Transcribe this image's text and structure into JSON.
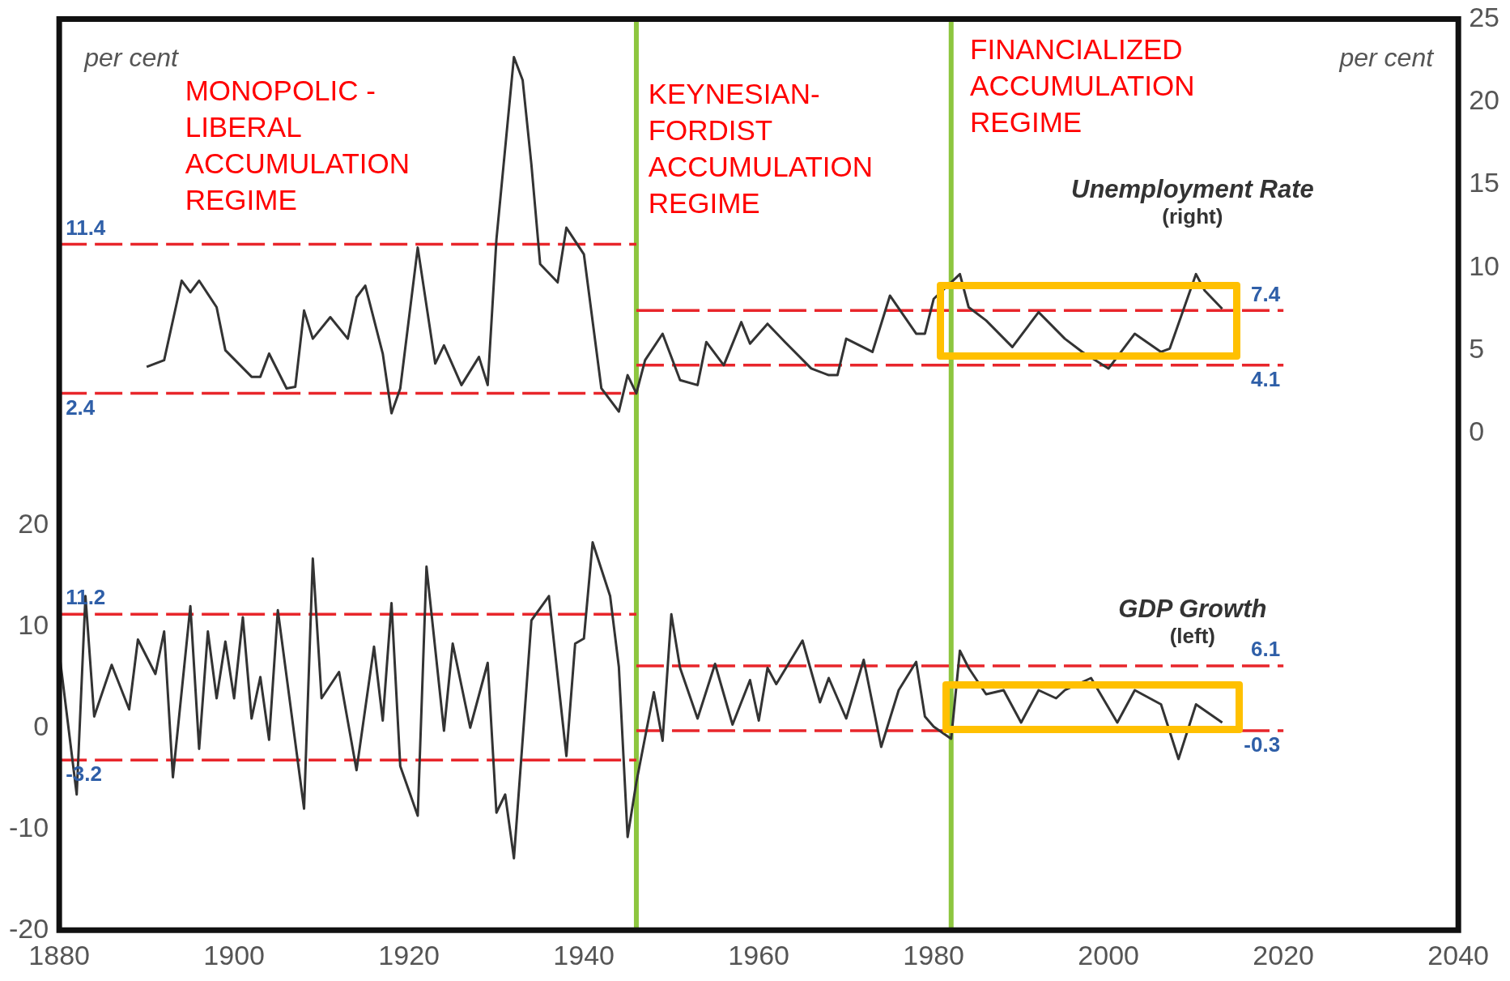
{
  "chart_data": {
    "type": "line",
    "xlim": [
      1880,
      2040
    ],
    "xticks": [
      1880,
      1900,
      1920,
      1940,
      1960,
      1980,
      2000,
      2020,
      2040
    ],
    "ylim": [
      -20,
      70
    ],
    "yticks": [
      -20,
      -10,
      0,
      10,
      20
    ],
    "y2lim": [
      -30,
      25
    ],
    "y2ticks": [
      0,
      5,
      10,
      15,
      20,
      25
    ],
    "grid": false,
    "marker": "none",
    "annotations": [
      "per cent",
      "per cent",
      "MONOPOLIC - LIBERAL ACCUMULATION REGIME",
      "KEYNESIAN-FORDIST ACCUMULATION REGIME",
      "FINANCIALIZED ACCUMULATION REGIME"
    ],
    "ref_lines": [
      {
        "axis": "x",
        "value": 1946,
        "color": "#8dc63f"
      },
      {
        "axis": "x",
        "value": 1982,
        "color": "#8dc63f"
      }
    ],
    "series": [
      {
        "name": "Unemployment Rate (right)",
        "color": "#333333",
        "axis": "y2",
        "x": [
          1890,
          1892,
          1894,
          1895,
          1896,
          1898,
          1899,
          1902,
          1903,
          1904,
          1906,
          1907,
          1908,
          1909,
          1911,
          1913,
          1914,
          1915,
          1917,
          1918,
          1919,
          1921,
          1923,
          1924,
          1926,
          1928,
          1929,
          1930,
          1932,
          1933,
          1934,
          1935,
          1937,
          1938,
          1940,
          1942,
          1944,
          1945,
          1946,
          1947,
          1949,
          1951,
          1953,
          1954,
          1956,
          1958,
          1959,
          1961,
          1963,
          1966,
          1968,
          1969,
          1970,
          1973,
          1975,
          1978,
          1979,
          1980,
          1983,
          1984,
          1986,
          1989,
          1992,
          1995,
          1997,
          2000,
          2003,
          2006,
          2007,
          2010,
          2011,
          2013
        ],
        "values": [
          4.0,
          4.4,
          9.2,
          8.5,
          9.2,
          7.6,
          5.0,
          3.4,
          3.4,
          4.8,
          2.7,
          2.8,
          7.4,
          5.7,
          7.0,
          5.7,
          8.2,
          8.9,
          4.8,
          1.2,
          2.7,
          11.2,
          4.2,
          5.3,
          2.9,
          4.6,
          2.9,
          11.7,
          22.7,
          21.3,
          16.2,
          10.2,
          9.1,
          12.4,
          10.8,
          2.7,
          1.3,
          3.5,
          2.4,
          4.4,
          6.0,
          3.2,
          2.9,
          5.5,
          4.1,
          6.7,
          5.4,
          6.6,
          5.5,
          3.9,
          3.5,
          3.5,
          5.7,
          4.9,
          8.3,
          6.0,
          6.0,
          8.1,
          9.6,
          7.6,
          6.8,
          5.2,
          7.3,
          5.7,
          4.9,
          3.9,
          6.0,
          4.9,
          5.1,
          9.6,
          8.6,
          7.5
        ]
      },
      {
        "name": "GDP Growth (left)",
        "color": "#333333",
        "x": [
          1880,
          1882,
          1883,
          1884,
          1886,
          1888,
          1889,
          1891,
          1892,
          1893,
          1895,
          1896,
          1897,
          1898,
          1899,
          1900,
          1901,
          1902,
          1903,
          1904,
          1905,
          1908,
          1909,
          1910,
          1912,
          1914,
          1916,
          1917,
          1918,
          1919,
          1921,
          1922,
          1924,
          1925,
          1927,
          1929,
          1930,
          1931,
          1932,
          1934,
          1936,
          1938,
          1939,
          1940,
          1941,
          1943,
          1944,
          1945,
          1946,
          1948,
          1949,
          1950,
          1951,
          1953,
          1955,
          1957,
          1959,
          1960,
          1961,
          1962,
          1965,
          1967,
          1968,
          1970,
          1972,
          1974,
          1976,
          1978,
          1979,
          1980,
          1982,
          1983,
          1984,
          1986,
          1988,
          1990,
          1992,
          1994,
          1995,
          1998,
          2001,
          2003,
          2006,
          2008,
          2010,
          2013
        ],
        "values": [
          7.4,
          -6.6,
          13.0,
          1.1,
          6.2,
          1.8,
          8.7,
          5.3,
          9.5,
          -4.9,
          12.0,
          -2.1,
          9.5,
          2.9,
          8.5,
          2.9,
          10.9,
          0.9,
          5.0,
          -1.2,
          11.6,
          -8.0,
          16.7,
          2.9,
          5.5,
          -4.2,
          8.0,
          0.7,
          12.3,
          -3.8,
          -8.7,
          15.9,
          -0.3,
          8.3,
          0.0,
          6.4,
          -8.4,
          -6.6,
          -12.9,
          10.6,
          13.0,
          -2.8,
          8.3,
          8.8,
          18.3,
          13.0,
          6.0,
          -10.8,
          -5.4,
          3.5,
          -1.3,
          11.2,
          5.9,
          0.9,
          6.3,
          0.3,
          4.7,
          0.7,
          5.9,
          4.3,
          8.6,
          2.5,
          4.9,
          0.9,
          6.7,
          -1.9,
          3.7,
          6.5,
          1.1,
          0.1,
          -1.1,
          7.6,
          5.9,
          3.3,
          3.7,
          0.5,
          3.7,
          2.9,
          3.7,
          4.9,
          0.5,
          3.7,
          2.3,
          -3.1,
          2.3,
          0.5
        ]
      },
      {
        "color": "#e8262b",
        "axis": "y2",
        "line_style": "dashed",
        "x": [
          1880,
          1946
        ],
        "values": [
          11.4,
          11.4
        ],
        "value_labels": [
          "11.4",
          null
        ]
      },
      {
        "color": "#e8262b",
        "axis": "y2",
        "line_style": "dashed",
        "x": [
          1880,
          1946
        ],
        "values": [
          2.4,
          2.4
        ],
        "value_labels": [
          "2.4",
          null
        ]
      },
      {
        "color": "#e8262b",
        "axis": "y2",
        "line_style": "dashed",
        "x": [
          1946,
          2020
        ],
        "values": [
          7.4,
          7.4
        ],
        "value_labels": [
          null,
          "7.4"
        ]
      },
      {
        "color": "#e8262b",
        "axis": "y2",
        "line_style": "dashed",
        "x": [
          1946,
          2020
        ],
        "values": [
          4.1,
          4.1
        ],
        "value_labels": [
          null,
          "4.1"
        ]
      },
      {
        "color": "#e8262b",
        "line_style": "dashed",
        "x": [
          1880,
          1946
        ],
        "values": [
          11.2,
          11.2
        ],
        "value_labels": [
          "11.2",
          null
        ]
      },
      {
        "color": "#e8262b",
        "line_style": "dashed",
        "x": [
          1880,
          1946
        ],
        "values": [
          -3.2,
          -3.2
        ],
        "value_labels": [
          "-3.2",
          null
        ]
      },
      {
        "color": "#e8262b",
        "line_style": "dashed",
        "x": [
          1946,
          2020
        ],
        "values": [
          6.1,
          6.1
        ],
        "value_labels": [
          null,
          "6.1"
        ]
      },
      {
        "color": "#e8262b",
        "line_style": "dashed",
        "x": [
          1946,
          2020
        ],
        "values": [
          -0.3,
          -0.3
        ],
        "value_labels": [
          null,
          "-0.3"
        ]
      }
    ]
  }
}
